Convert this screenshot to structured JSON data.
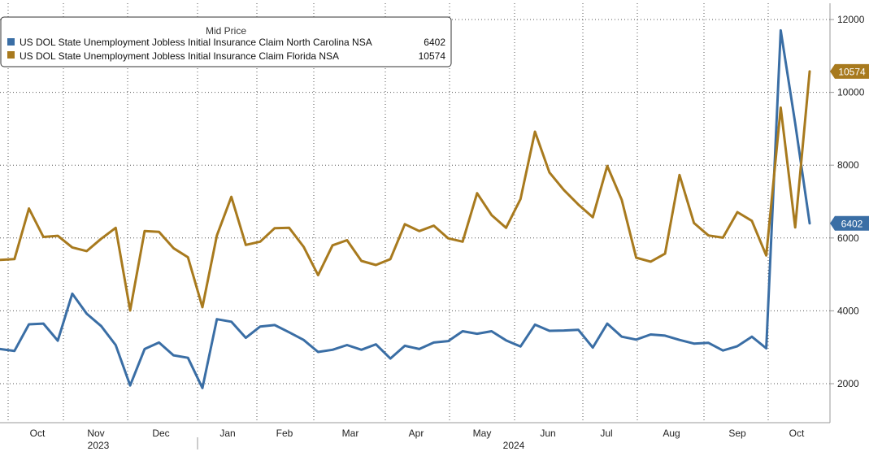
{
  "chart_data": {
    "type": "line",
    "legend": {
      "title": "Mid Price",
      "placement": "top-left"
    },
    "series": [
      {
        "name": "US DOL State Unemployment Jobless Initial Insurance Claim North Carolina NSA",
        "last_value": "6402",
        "color": "#3a6ea5",
        "values": [
          2950,
          2900,
          3630,
          3650,
          3180,
          4470,
          3920,
          3580,
          3060,
          1950,
          2950,
          3130,
          2780,
          2710,
          1880,
          3770,
          3700,
          3260,
          3570,
          3610,
          3410,
          3200,
          2870,
          2930,
          3060,
          2930,
          3080,
          2690,
          3040,
          2950,
          3130,
          3170,
          3440,
          3370,
          3440,
          3190,
          3020,
          3620,
          3450,
          3460,
          3480,
          2990,
          3650,
          3290,
          3210,
          3350,
          3320,
          3200,
          3100,
          3120,
          2910,
          3030,
          3290,
          2970,
          11700,
          9150,
          6402
        ]
      },
      {
        "name": "US DOL State Unemployment Jobless Initial Insurance Claim Florida NSA",
        "last_value": "10574",
        "color": "#a87a1e",
        "values": [
          5400,
          5420,
          6810,
          6030,
          6060,
          5740,
          5640,
          5980,
          6280,
          4010,
          6190,
          6170,
          5720,
          5470,
          4100,
          6070,
          7130,
          5810,
          5900,
          6270,
          6280,
          5760,
          4980,
          5800,
          5940,
          5370,
          5260,
          5420,
          6380,
          6190,
          6340,
          5990,
          5900,
          7230,
          6630,
          6280,
          7070,
          8920,
          7800,
          7320,
          6920,
          6570,
          7980,
          7050,
          5460,
          5350,
          5570,
          7730,
          6410,
          6070,
          6010,
          6710,
          6470,
          5520,
          9580,
          6290,
          10574
        ]
      }
    ],
    "y_axis": {
      "position": "right",
      "range": [
        1000,
        12500
      ],
      "ticks": [
        "2000",
        "4000",
        "6000",
        "8000",
        "10000",
        "12000"
      ],
      "grid": true
    },
    "x_axis": {
      "months": [
        "Oct",
        "Nov",
        "Dec",
        "Jan",
        "Feb",
        "Mar",
        "Apr",
        "May",
        "Jun",
        "Jul",
        "Aug",
        "Sep",
        "Oct"
      ],
      "years": [
        "2023",
        "2024"
      ],
      "grid": true
    },
    "grid_style": "dotted"
  }
}
